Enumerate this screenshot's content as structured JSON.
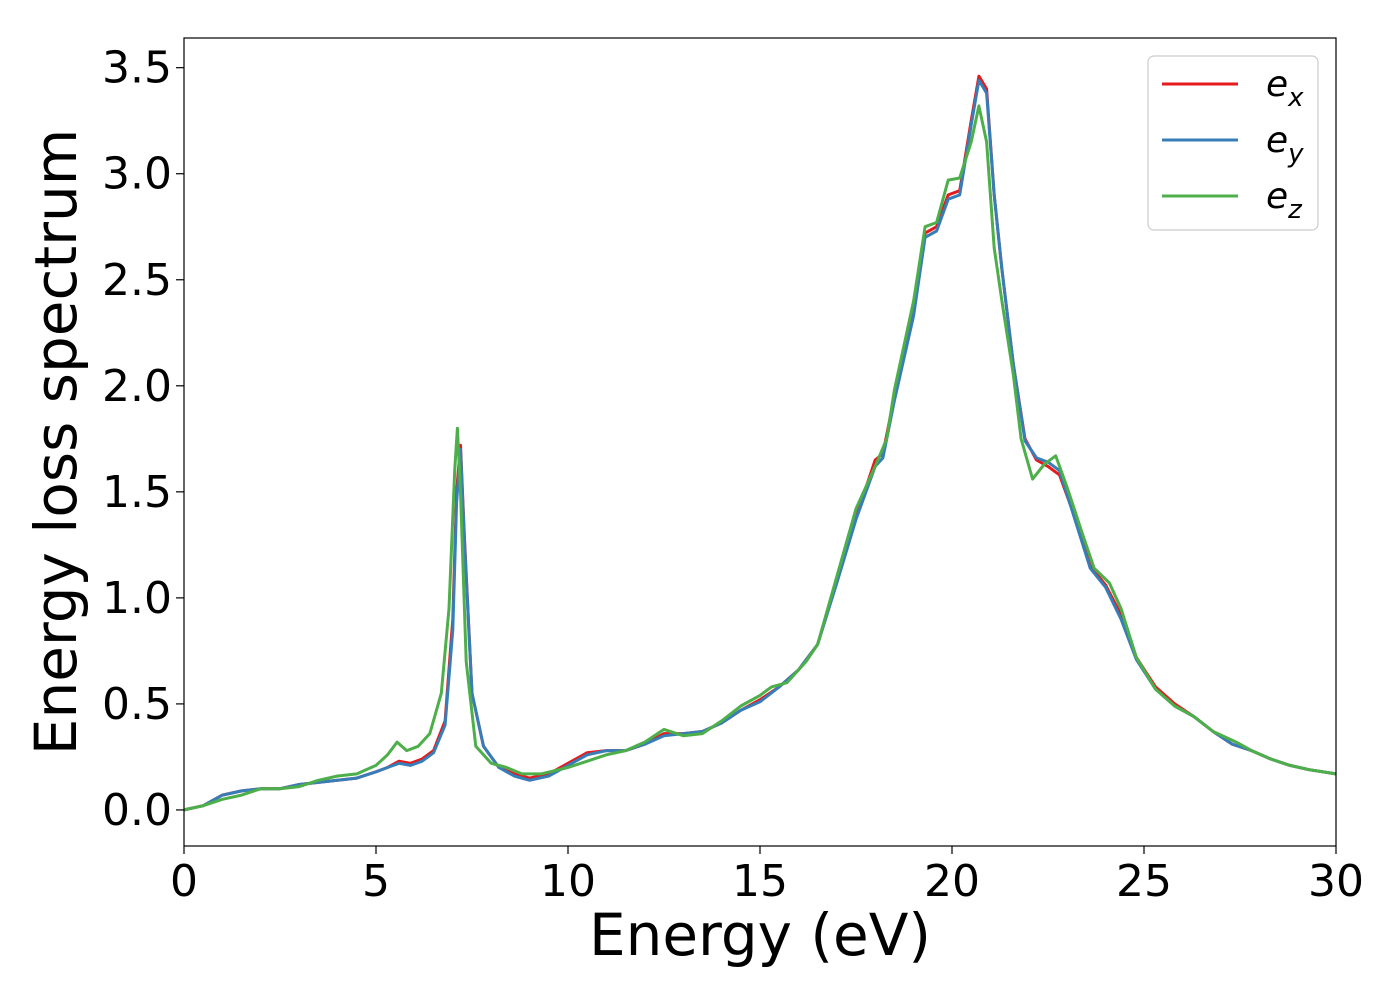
{
  "chart_data": {
    "type": "line",
    "xlabel": "Energy (eV)",
    "ylabel": "Energy loss spectrum",
    "xlim": [
      0,
      30
    ],
    "ylim": [
      -0.17,
      3.64
    ],
    "xticks": [
      0,
      5,
      10,
      15,
      20,
      25,
      30
    ],
    "xtick_labels": [
      "0",
      "5",
      "10",
      "15",
      "20",
      "25",
      "30"
    ],
    "yticks": [
      0.0,
      0.5,
      1.0,
      1.5,
      2.0,
      2.5,
      3.0,
      3.5
    ],
    "ytick_labels": [
      "0.0",
      "0.5",
      "1.0",
      "1.5",
      "2.0",
      "2.5",
      "3.0",
      "3.5"
    ],
    "grid": false,
    "legend_position": "top-right",
    "series": [
      {
        "name": "e_x",
        "label_base": "e",
        "label_sub": "x",
        "color": "#e41a1c",
        "points": [
          [
            0,
            0
          ],
          [
            0.5,
            0.02
          ],
          [
            1,
            0.07
          ],
          [
            1.5,
            0.09
          ],
          [
            2,
            0.1
          ],
          [
            2.5,
            0.1
          ],
          [
            3,
            0.12
          ],
          [
            3.5,
            0.13
          ],
          [
            4,
            0.14
          ],
          [
            4.5,
            0.15
          ],
          [
            5,
            0.18
          ],
          [
            5.3,
            0.2
          ],
          [
            5.6,
            0.23
          ],
          [
            5.9,
            0.22
          ],
          [
            6.2,
            0.24
          ],
          [
            6.5,
            0.28
          ],
          [
            6.8,
            0.42
          ],
          [
            7.0,
            0.9
          ],
          [
            7.1,
            1.5
          ],
          [
            7.2,
            1.72
          ],
          [
            7.3,
            1.3
          ],
          [
            7.5,
            0.55
          ],
          [
            7.8,
            0.3
          ],
          [
            8.2,
            0.2
          ],
          [
            8.6,
            0.17
          ],
          [
            9,
            0.15
          ],
          [
            9.5,
            0.17
          ],
          [
            10,
            0.22
          ],
          [
            10.5,
            0.27
          ],
          [
            11,
            0.28
          ],
          [
            11.5,
            0.28
          ],
          [
            12,
            0.31
          ],
          [
            12.5,
            0.36
          ],
          [
            13,
            0.36
          ],
          [
            13.5,
            0.37
          ],
          [
            14,
            0.41
          ],
          [
            14.5,
            0.47
          ],
          [
            15,
            0.52
          ],
          [
            15.5,
            0.58
          ],
          [
            16,
            0.66
          ],
          [
            16.5,
            0.78
          ],
          [
            17,
            1.08
          ],
          [
            17.5,
            1.38
          ],
          [
            18,
            1.65
          ],
          [
            18.2,
            1.68
          ],
          [
            18.5,
            1.95
          ],
          [
            19,
            2.35
          ],
          [
            19.3,
            2.72
          ],
          [
            19.6,
            2.75
          ],
          [
            19.9,
            2.9
          ],
          [
            20.2,
            2.92
          ],
          [
            20.5,
            3.25
          ],
          [
            20.7,
            3.46
          ],
          [
            20.9,
            3.4
          ],
          [
            21.1,
            2.9
          ],
          [
            21.3,
            2.55
          ],
          [
            21.6,
            2.1
          ],
          [
            21.9,
            1.75
          ],
          [
            22.2,
            1.65
          ],
          [
            22.5,
            1.62
          ],
          [
            22.8,
            1.58
          ],
          [
            23.2,
            1.38
          ],
          [
            23.6,
            1.15
          ],
          [
            24,
            1.06
          ],
          [
            24.4,
            0.92
          ],
          [
            24.8,
            0.72
          ],
          [
            25.3,
            0.58
          ],
          [
            25.8,
            0.5
          ],
          [
            26.3,
            0.44
          ],
          [
            26.8,
            0.37
          ],
          [
            27.3,
            0.31
          ],
          [
            27.8,
            0.28
          ],
          [
            28.3,
            0.24
          ],
          [
            28.8,
            0.21
          ],
          [
            29.3,
            0.19
          ],
          [
            30,
            0.17
          ]
        ]
      },
      {
        "name": "e_y",
        "label_base": "e",
        "label_sub": "y",
        "color": "#377eb8",
        "points": [
          [
            0,
            0
          ],
          [
            0.5,
            0.02
          ],
          [
            1,
            0.07
          ],
          [
            1.5,
            0.09
          ],
          [
            2,
            0.1
          ],
          [
            2.5,
            0.1
          ],
          [
            3,
            0.12
          ],
          [
            3.5,
            0.13
          ],
          [
            4,
            0.14
          ],
          [
            4.5,
            0.15
          ],
          [
            5,
            0.18
          ],
          [
            5.3,
            0.2
          ],
          [
            5.6,
            0.22
          ],
          [
            5.9,
            0.21
          ],
          [
            6.2,
            0.23
          ],
          [
            6.5,
            0.27
          ],
          [
            6.8,
            0.4
          ],
          [
            7.0,
            0.85
          ],
          [
            7.1,
            1.45
          ],
          [
            7.2,
            1.7
          ],
          [
            7.3,
            1.28
          ],
          [
            7.5,
            0.55
          ],
          [
            7.8,
            0.3
          ],
          [
            8.2,
            0.2
          ],
          [
            8.6,
            0.16
          ],
          [
            9,
            0.14
          ],
          [
            9.5,
            0.16
          ],
          [
            10,
            0.21
          ],
          [
            10.5,
            0.26
          ],
          [
            11,
            0.28
          ],
          [
            11.5,
            0.28
          ],
          [
            12,
            0.31
          ],
          [
            12.5,
            0.35
          ],
          [
            13,
            0.36
          ],
          [
            13.5,
            0.37
          ],
          [
            14,
            0.41
          ],
          [
            14.5,
            0.47
          ],
          [
            15,
            0.51
          ],
          [
            15.5,
            0.58
          ],
          [
            16,
            0.66
          ],
          [
            16.5,
            0.78
          ],
          [
            17,
            1.07
          ],
          [
            17.5,
            1.37
          ],
          [
            18,
            1.62
          ],
          [
            18.2,
            1.66
          ],
          [
            18.5,
            1.93
          ],
          [
            19,
            2.33
          ],
          [
            19.3,
            2.7
          ],
          [
            19.6,
            2.73
          ],
          [
            19.9,
            2.88
          ],
          [
            20.2,
            2.9
          ],
          [
            20.5,
            3.23
          ],
          [
            20.7,
            3.44
          ],
          [
            20.9,
            3.38
          ],
          [
            21.1,
            2.9
          ],
          [
            21.3,
            2.55
          ],
          [
            21.6,
            2.1
          ],
          [
            21.9,
            1.74
          ],
          [
            22.2,
            1.66
          ],
          [
            22.5,
            1.64
          ],
          [
            22.8,
            1.6
          ],
          [
            23.2,
            1.37
          ],
          [
            23.6,
            1.14
          ],
          [
            24,
            1.05
          ],
          [
            24.4,
            0.9
          ],
          [
            24.8,
            0.71
          ],
          [
            25.3,
            0.57
          ],
          [
            25.8,
            0.49
          ],
          [
            26.3,
            0.44
          ],
          [
            26.8,
            0.37
          ],
          [
            27.3,
            0.31
          ],
          [
            27.8,
            0.28
          ],
          [
            28.3,
            0.24
          ],
          [
            28.8,
            0.21
          ],
          [
            29.3,
            0.19
          ],
          [
            30,
            0.17
          ]
        ]
      },
      {
        "name": "e_z",
        "label_base": "e",
        "label_sub": "z",
        "color": "#4daf4a",
        "points": [
          [
            0,
            0
          ],
          [
            0.5,
            0.02
          ],
          [
            1,
            0.05
          ],
          [
            1.5,
            0.07
          ],
          [
            2,
            0.1
          ],
          [
            2.5,
            0.1
          ],
          [
            3,
            0.11
          ],
          [
            3.5,
            0.14
          ],
          [
            4,
            0.16
          ],
          [
            4.5,
            0.17
          ],
          [
            5,
            0.21
          ],
          [
            5.3,
            0.26
          ],
          [
            5.55,
            0.32
          ],
          [
            5.8,
            0.28
          ],
          [
            6.1,
            0.3
          ],
          [
            6.4,
            0.36
          ],
          [
            6.7,
            0.55
          ],
          [
            6.9,
            0.95
          ],
          [
            7.05,
            1.6
          ],
          [
            7.12,
            1.8
          ],
          [
            7.2,
            1.5
          ],
          [
            7.35,
            0.7
          ],
          [
            7.6,
            0.3
          ],
          [
            8,
            0.22
          ],
          [
            8.4,
            0.2
          ],
          [
            8.8,
            0.17
          ],
          [
            9.3,
            0.17
          ],
          [
            10,
            0.2
          ],
          [
            10.5,
            0.23
          ],
          [
            11,
            0.26
          ],
          [
            11.5,
            0.28
          ],
          [
            12,
            0.32
          ],
          [
            12.5,
            0.38
          ],
          [
            13,
            0.35
          ],
          [
            13.5,
            0.36
          ],
          [
            14,
            0.42
          ],
          [
            14.5,
            0.49
          ],
          [
            15,
            0.54
          ],
          [
            15.3,
            0.58
          ],
          [
            15.7,
            0.6
          ],
          [
            16.2,
            0.7
          ],
          [
            16.5,
            0.78
          ],
          [
            17,
            1.1
          ],
          [
            17.5,
            1.42
          ],
          [
            18,
            1.62
          ],
          [
            18.3,
            1.75
          ],
          [
            18.5,
            1.98
          ],
          [
            19,
            2.4
          ],
          [
            19.3,
            2.75
          ],
          [
            19.6,
            2.77
          ],
          [
            19.9,
            2.97
          ],
          [
            20.2,
            2.98
          ],
          [
            20.5,
            3.15
          ],
          [
            20.7,
            3.32
          ],
          [
            20.9,
            3.15
          ],
          [
            21.1,
            2.65
          ],
          [
            21.3,
            2.4
          ],
          [
            21.6,
            2.05
          ],
          [
            21.8,
            1.75
          ],
          [
            22.1,
            1.56
          ],
          [
            22.4,
            1.63
          ],
          [
            22.7,
            1.67
          ],
          [
            23,
            1.52
          ],
          [
            23.4,
            1.3
          ],
          [
            23.7,
            1.14
          ],
          [
            24.1,
            1.07
          ],
          [
            24.4,
            0.95
          ],
          [
            24.8,
            0.72
          ],
          [
            25.3,
            0.57
          ],
          [
            25.8,
            0.49
          ],
          [
            26.3,
            0.44
          ],
          [
            26.8,
            0.37
          ],
          [
            27.4,
            0.32
          ],
          [
            27.8,
            0.28
          ],
          [
            28.3,
            0.24
          ],
          [
            28.8,
            0.21
          ],
          [
            29.3,
            0.19
          ],
          [
            30,
            0.17
          ]
        ]
      }
    ]
  }
}
